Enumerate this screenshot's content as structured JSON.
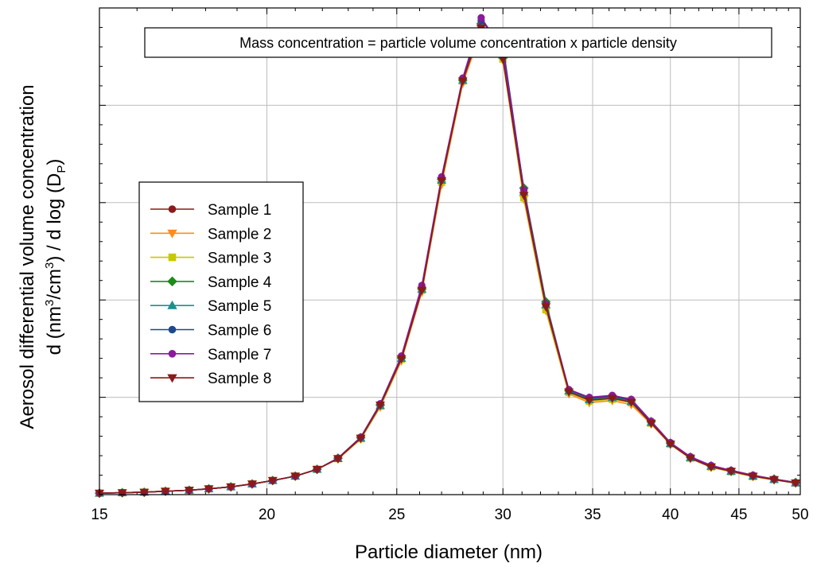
{
  "chart_data": {
    "type": "line",
    "annotation": "Mass concentration = particle volume concentration x particle density",
    "xlabel": "Particle diameter (nm)",
    "ylabel_line1": "Aerosol differential volume concentration",
    "ylabel_line2_parts": [
      "d (nm",
      "3",
      "/cm",
      "3",
      ") / d log (D",
      "P",
      ")"
    ],
    "x_scale": "log",
    "xlim": [
      15,
      50
    ],
    "ylim": [
      0,
      100
    ],
    "y_tick_labels": "none",
    "grid": true,
    "legend_position": "left",
    "x_ticks": [
      15,
      20,
      25,
      30,
      35,
      40,
      45,
      50
    ],
    "x": [
      15.0,
      15.6,
      16.2,
      16.8,
      17.5,
      18.1,
      18.8,
      19.5,
      20.2,
      21.0,
      21.8,
      22.6,
      23.5,
      24.3,
      25.2,
      26.1,
      27.0,
      28.0,
      28.9,
      30.0,
      31.1,
      32.3,
      33.6,
      34.8,
      36.2,
      37.4,
      38.7,
      40.0,
      41.4,
      42.9,
      44.4,
      46.1,
      47.8,
      49.6
    ],
    "series": [
      {
        "name": "Sample 1",
        "color": "#8b1a1a",
        "marker": "circle",
        "values": [
          0.3,
          0.4,
          0.5,
          0.7,
          0.9,
          1.2,
          1.6,
          2.2,
          2.9,
          3.8,
          5.2,
          7.5,
          11.8,
          18.5,
          28.1,
          42.3,
          64.7,
          85.2,
          96.7,
          90.1,
          61.8,
          38.7,
          21.2,
          19.6,
          20.0,
          19.3,
          14.9,
          10.5,
          7.6,
          5.8,
          4.8,
          3.8,
          3.1,
          2.4
        ]
      },
      {
        "name": "Sample 2",
        "color": "#ff8c1a",
        "marker": "triangle-down",
        "values": [
          0.3,
          0.4,
          0.5,
          0.7,
          0.9,
          1.2,
          1.6,
          2.2,
          2.9,
          3.8,
          5.2,
          7.3,
          11.4,
          18.0,
          27.5,
          41.6,
          63.7,
          84.5,
          95.2,
          89.2,
          60.7,
          37.8,
          20.7,
          18.9,
          19.3,
          18.5,
          14.5,
          10.3,
          7.4,
          5.6,
          4.7,
          3.7,
          3.0,
          2.4
        ]
      },
      {
        "name": "Sample 3",
        "color": "#c8c800",
        "marker": "square",
        "values": [
          0.3,
          0.4,
          0.5,
          0.7,
          0.9,
          1.2,
          1.6,
          2.2,
          2.9,
          3.8,
          5.2,
          7.4,
          11.5,
          18.2,
          27.8,
          42.0,
          64.2,
          85.0,
          96.0,
          89.5,
          61.0,
          38.0,
          21.0,
          19.2,
          19.6,
          18.9,
          14.7,
          10.4,
          7.5,
          5.7,
          4.7,
          3.7,
          3.1,
          2.4
        ]
      },
      {
        "name": "Sample 4",
        "color": "#1a8c1a",
        "marker": "diamond",
        "values": [
          0.3,
          0.4,
          0.5,
          0.7,
          0.9,
          1.2,
          1.6,
          2.2,
          2.9,
          3.8,
          5.2,
          7.5,
          11.7,
          18.4,
          28.1,
          42.3,
          64.8,
          85.2,
          96.8,
          89.8,
          63.0,
          39.6,
          21.4,
          19.8,
          20.1,
          19.4,
          15.0,
          10.6,
          7.7,
          5.9,
          4.9,
          3.9,
          3.2,
          2.5
        ]
      },
      {
        "name": "Sample 5",
        "color": "#1a9090",
        "marker": "triangle-up",
        "values": [
          0.3,
          0.4,
          0.5,
          0.7,
          0.9,
          1.2,
          1.6,
          2.2,
          2.9,
          3.8,
          5.2,
          7.4,
          11.6,
          18.3,
          28.0,
          42.2,
          64.6,
          85.1,
          96.9,
          90.3,
          62.2,
          39.0,
          21.3,
          19.5,
          19.9,
          19.1,
          14.8,
          10.5,
          7.6,
          5.8,
          4.8,
          3.8,
          3.1,
          2.4
        ]
      },
      {
        "name": "Sample 6",
        "color": "#1a4a8c",
        "marker": "circle",
        "values": [
          0.3,
          0.4,
          0.5,
          0.7,
          0.9,
          1.2,
          1.6,
          2.2,
          2.9,
          3.8,
          5.2,
          7.5,
          11.8,
          18.6,
          28.3,
          42.6,
          65.0,
          85.4,
          97.4,
          92.3,
          62.6,
          39.2,
          21.5,
          19.8,
          20.2,
          19.4,
          15.0,
          10.6,
          7.7,
          5.9,
          4.9,
          3.9,
          3.2,
          2.5
        ]
      },
      {
        "name": "Sample 7",
        "color": "#8b1a9c",
        "marker": "circle",
        "values": [
          0.3,
          0.4,
          0.5,
          0.7,
          0.9,
          1.2,
          1.6,
          2.2,
          2.9,
          3.8,
          5.2,
          7.5,
          11.8,
          18.7,
          28.5,
          43.0,
          65.3,
          85.6,
          98.0,
          91.3,
          62.6,
          39.1,
          21.6,
          20.0,
          20.4,
          19.6,
          15.1,
          10.7,
          7.8,
          6.0,
          5.0,
          4.0,
          3.2,
          2.5
        ]
      },
      {
        "name": "Sample 8",
        "color": "#8b1a1a",
        "marker": "triangle-down",
        "values": [
          0.3,
          0.4,
          0.5,
          0.7,
          0.9,
          1.2,
          1.6,
          2.2,
          2.9,
          3.8,
          5.2,
          7.4,
          11.6,
          18.4,
          27.9,
          42.0,
          64.5,
          85.0,
          95.9,
          89.5,
          61.5,
          38.6,
          21.1,
          19.4,
          19.8,
          19.0,
          14.7,
          10.4,
          7.5,
          5.7,
          4.8,
          3.8,
          3.1,
          2.4
        ]
      }
    ]
  }
}
